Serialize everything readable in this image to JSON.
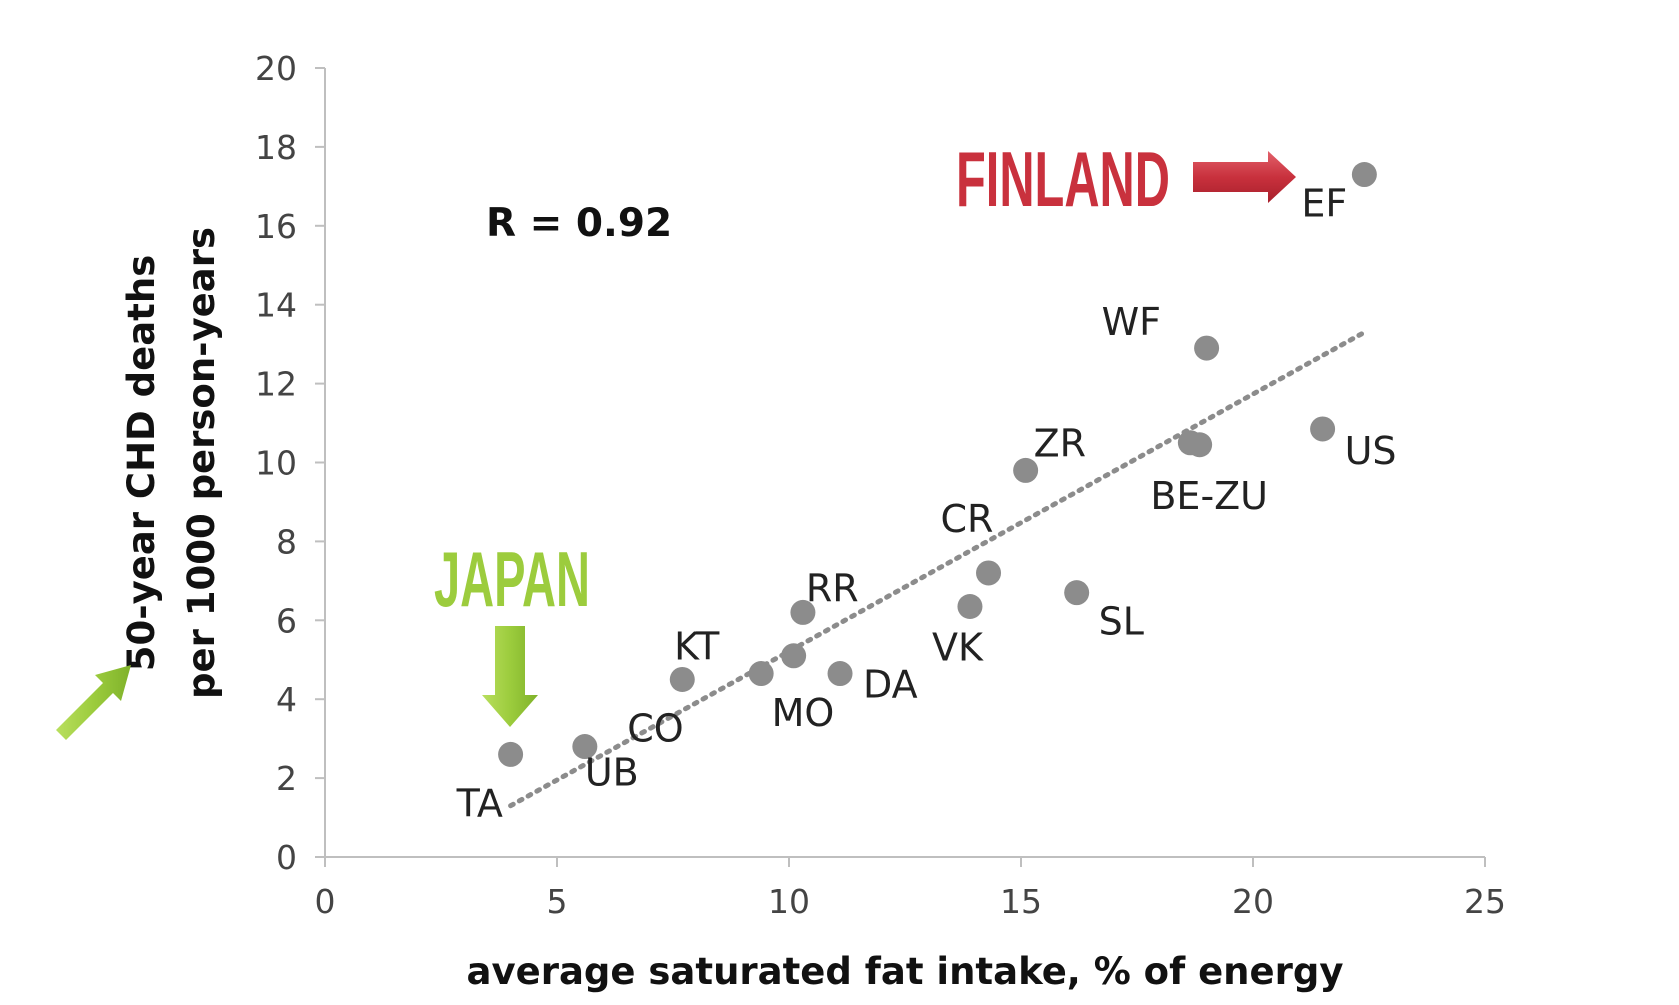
{
  "chart_data": {
    "type": "scatter",
    "title": "",
    "xlabel": "average saturated fat intake, % of energy",
    "ylabel_line1": "50-year CHD deaths",
    "ylabel_line2": "per 1000 person-years",
    "xlim": [
      0,
      25
    ],
    "ylim": [
      0,
      20
    ],
    "xticks": [
      0,
      5,
      10,
      15,
      20,
      25
    ],
    "yticks": [
      0,
      2,
      4,
      6,
      8,
      10,
      12,
      14,
      16,
      18,
      20
    ],
    "grid": false,
    "legend": "none",
    "annotation_r": "R = 0.92",
    "trendline": {
      "style": "dotted",
      "x": [
        4,
        22.4
      ],
      "y": [
        1.3,
        13.3
      ]
    },
    "points": [
      {
        "label": "TA",
        "x": 4.0,
        "y": 2.6
      },
      {
        "label": "UB",
        "x": 5.6,
        "y": 2.8
      },
      {
        "label": "CO",
        "x": 7.7,
        "y": 4.5
      },
      {
        "label": "KT",
        "x": 9.4,
        "y": 4.65
      },
      {
        "label": "MO",
        "x": 10.1,
        "y": 5.1
      },
      {
        "label": "RR",
        "x": 10.3,
        "y": 6.2
      },
      {
        "label": "DA",
        "x": 11.1,
        "y": 4.65
      },
      {
        "label": "VK",
        "x": 13.9,
        "y": 6.35
      },
      {
        "label": "CR",
        "x": 14.3,
        "y": 7.2
      },
      {
        "label": "ZR",
        "x": 15.1,
        "y": 9.8
      },
      {
        "label": "SL",
        "x": 16.2,
        "y": 6.7
      },
      {
        "label": "BE-ZU",
        "x": 18.65,
        "y": 10.5
      },
      {
        "label": "",
        "x": 18.85,
        "y": 10.45
      },
      {
        "label": "WF",
        "x": 19.0,
        "y": 12.9
      },
      {
        "label": "US",
        "x": 21.5,
        "y": 10.85
      },
      {
        "label": "EF",
        "x": 22.4,
        "y": 17.3
      }
    ],
    "callouts": {
      "finland": {
        "text": "FINLAND",
        "target": "EF",
        "color": "#c9313d"
      },
      "japan": {
        "text": "JAPAN",
        "target": "TA",
        "color": "#9ccc3d"
      }
    },
    "colors": {
      "point": "#8c8c8c",
      "trend": "#8c8c8c",
      "axis": "#bfbfbf"
    }
  }
}
